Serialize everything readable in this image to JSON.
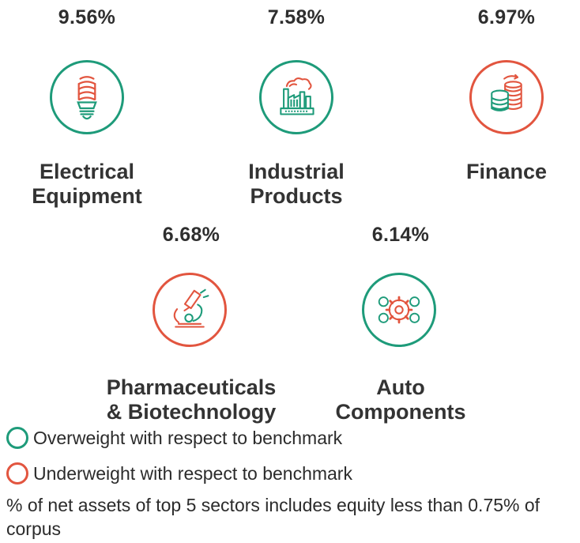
{
  "sectors": [
    {
      "name_line1": "Electrical",
      "name_line2": "Equipment",
      "percent": "9.56%",
      "weight": "overweight",
      "icon": "light-bulb-icon"
    },
    {
      "name_line1": "Industrial",
      "name_line2": "Products",
      "percent": "7.58%",
      "weight": "overweight",
      "icon": "factory-icon"
    },
    {
      "name_line1": "Finance",
      "name_line2": "",
      "percent": "6.97%",
      "weight": "underweight",
      "icon": "coin-stacks-icon"
    },
    {
      "name_line1": "Pharmaceuticals",
      "name_line2": "& Biotechnology",
      "percent": "6.68%",
      "weight": "underweight",
      "icon": "microscope-icon"
    },
    {
      "name_line1": "Auto",
      "name_line2": "Components",
      "percent": "6.14%",
      "weight": "overweight",
      "icon": "gears-icon"
    }
  ],
  "legend": {
    "overweight": "Overweight with respect to benchmark",
    "underweight": "Underweight with respect to benchmark"
  },
  "footnote": "% of net assets of top 5 sectors includes equity less than 0.75% of corpus",
  "colors": {
    "overweight": "#1e9b7a",
    "underweight": "#e2553f",
    "text": "#2b2b2b"
  }
}
